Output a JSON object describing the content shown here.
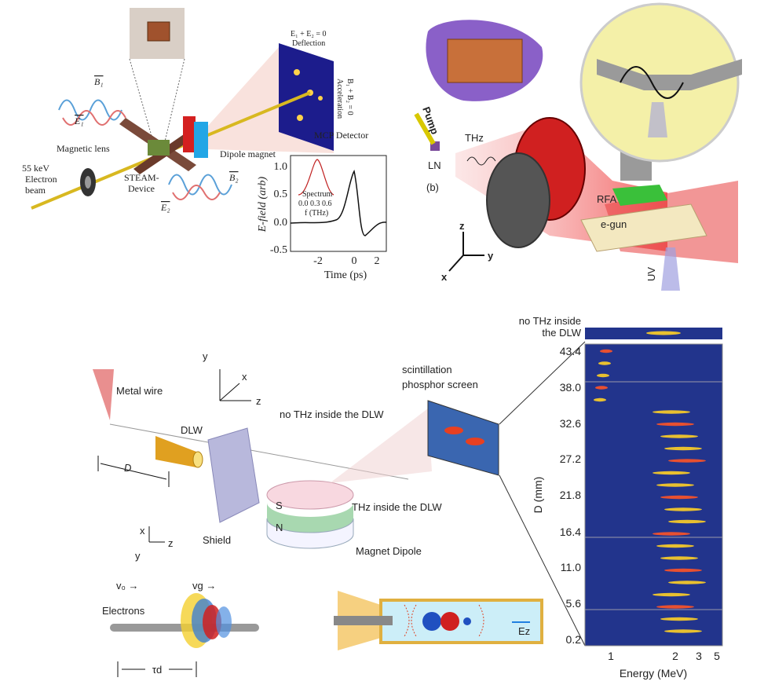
{
  "panel_a": {
    "b1": "B₁",
    "e1": "E₁",
    "deflection_eq": "E₁ + E₂ = 0",
    "deflection": "Deflection",
    "acceleration_eq": "B₁ + B₂ = 0",
    "acceleration": "Acceleration",
    "mcp": "MCP Detector",
    "magnetic_lens": "Magnetic lens",
    "dipole_magnet": "Dipole magnet",
    "beam_energy": "55 keV",
    "beam_1": "Electron",
    "beam_2": "beam",
    "device_1": "STEAM-",
    "device_2": "Device",
    "e2": "E₂",
    "b2": "B₂",
    "inset": {
      "ylabel": "E-field (arb)",
      "yticks": [
        "1.0",
        "0.5",
        "0.0",
        "-0.5"
      ],
      "xlabel": "Time (ps)",
      "xticks": [
        "-2",
        "0",
        "2"
      ],
      "spectrum": "Spectrum",
      "spectrum_ticks": "0.0 0.3 0.6",
      "spectrum_xlabel": "f (THz)"
    }
  },
  "panel_b": {
    "pump": "Pump",
    "thz": "THz",
    "ln": "LN",
    "label": "(b)",
    "rfa": "RFA",
    "egun": "e-gun",
    "axis_z": "z",
    "axis_y": "y",
    "axis_x": "x",
    "uv": "UV"
  },
  "panel_c": {
    "axis_y": "y",
    "axis_x": "x",
    "axis_z": "z",
    "metal_wire": "Metal wire",
    "dlw": "DLW",
    "d": "D",
    "shield": "Shield",
    "s": "S",
    "n": "N",
    "axis2_x": "x",
    "axis2_z": "z",
    "axis2_y": "y",
    "magnet": "Magnet Dipole",
    "no_thz": "no THz inside the DLW",
    "thz": "THz inside the DLW",
    "screen_1": "scintillation",
    "screen_2": "phosphor screen",
    "electrons": "Electrons",
    "v0": "v₀ →",
    "vg": "vg →",
    "tau": "τd",
    "ez": "Ez"
  },
  "panel_d": {
    "top_1": "no THz inside",
    "top_2": "the DLW",
    "yticks": [
      "43.4",
      "38.0",
      "32.6",
      "27.2",
      "21.8",
      "16.4",
      "11.0",
      "5.6",
      "0.2"
    ],
    "ylabel": "D (mm)",
    "xticks": [
      "1",
      "2",
      "3",
      "5"
    ],
    "xlabel": "Energy (MeV)"
  }
}
